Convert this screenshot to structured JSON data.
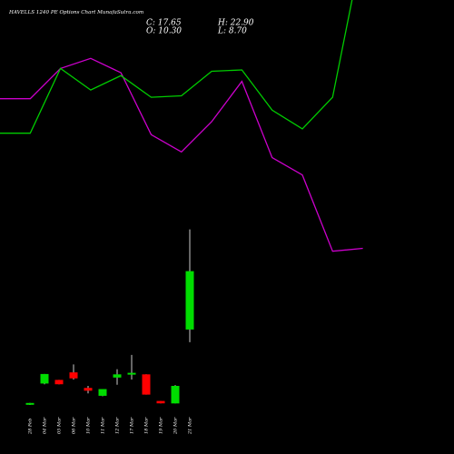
{
  "chart_data": {
    "type": "candlestick",
    "title": "HAVELLS 1240 PE Options Chart MunafaSutra.com",
    "ohlc_readout": {
      "close": "C: 17.65",
      "high": "H: 22.90",
      "open": "O: 10.30",
      "low": "L: 8.70"
    },
    "candles": [
      {
        "date": "28 Feb",
        "open": 0.85,
        "high": 1.05,
        "low": 0.8,
        "close": 1.05,
        "color": "green"
      },
      {
        "date": "04 Mar",
        "open": 3.5,
        "high": 4.7,
        "low": 3.4,
        "close": 4.7,
        "color": "green"
      },
      {
        "date": "05 Mar",
        "open": 3.95,
        "high": 3.95,
        "low": 3.4,
        "close": 3.4,
        "color": "red"
      },
      {
        "date": "06 Mar",
        "open": 4.9,
        "high": 5.9,
        "low": 4.0,
        "close": 4.15,
        "color": "red"
      },
      {
        "date": "10 Mar",
        "open": 2.95,
        "high": 3.2,
        "low": 2.25,
        "close": 2.6,
        "color": "red"
      },
      {
        "date": "11 Mar",
        "open": 1.95,
        "high": 2.8,
        "low": 1.9,
        "close": 2.8,
        "color": "green"
      },
      {
        "date": "12 Mar",
        "open": 4.25,
        "high": 5.3,
        "low": 3.35,
        "close": 4.65,
        "color": "green"
      },
      {
        "date": "17 Mar",
        "open": 4.75,
        "high": 7.1,
        "low": 4.0,
        "close": 4.85,
        "color": "green"
      },
      {
        "date": "18 Mar",
        "open": 4.65,
        "high": 4.65,
        "low": 2.1,
        "close": 2.1,
        "color": "red"
      },
      {
        "date": "19 Mar",
        "open": 1.3,
        "high": 1.3,
        "low": 1.0,
        "close": 1.0,
        "color": "red"
      },
      {
        "date": "20 Mar",
        "open": 1.0,
        "high": 3.3,
        "low": 1.0,
        "close": 3.2,
        "color": "green"
      },
      {
        "date": "21 Mar",
        "open": 10.3,
        "high": 22.9,
        "low": 8.7,
        "close": 17.65,
        "color": "green"
      }
    ],
    "ma_green": [
      63.3,
      63.3,
      67.8,
      66.3,
      67.3,
      65.8,
      65.9,
      67.6,
      67.7,
      64.9,
      63.6,
      65.8,
      76.3
    ],
    "ma_magenta": [
      65.7,
      65.7,
      67.8,
      68.5,
      67.5,
      63.2,
      62.0,
      64.1,
      66.9,
      61.6,
      60.4,
      55.1,
      55.3
    ],
    "colors": {
      "background": "#000000",
      "up": "#00dd00",
      "down": "#ff0000",
      "ma_green": "#00cc00",
      "ma_magenta": "#cc00cc",
      "wick": "#ffffff",
      "text": "#ffffff"
    }
  }
}
